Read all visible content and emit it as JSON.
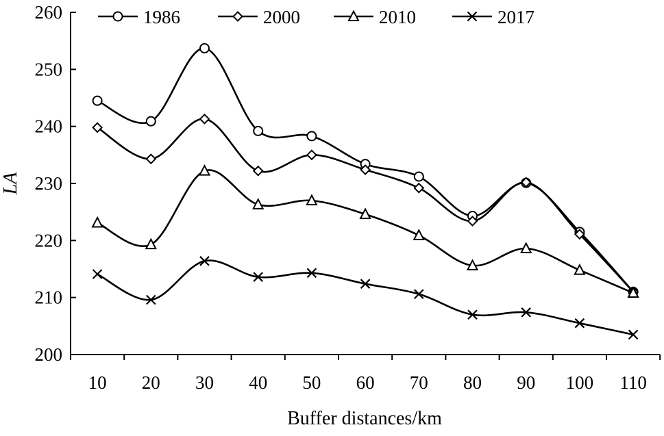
{
  "chart_data": {
    "type": "line",
    "xlabel": "Buffer distances/km",
    "ylabel": "LA",
    "ylim": [
      200,
      260
    ],
    "yticks": [
      200,
      210,
      220,
      230,
      240,
      250,
      260
    ],
    "x": [
      10,
      20,
      30,
      40,
      50,
      60,
      70,
      80,
      90,
      100,
      110
    ],
    "legend_position": "top-left",
    "grid": false,
    "smooth": true,
    "series": [
      {
        "name": "1986",
        "marker": "circle",
        "color": "#000000",
        "values": [
          244.5,
          240.9,
          253.7,
          239.2,
          238.3,
          233.4,
          231.2,
          224.3,
          230.1,
          221.5,
          211.0
        ]
      },
      {
        "name": "2000",
        "marker": "diamond",
        "color": "#000000",
        "values": [
          239.8,
          234.3,
          241.3,
          232.2,
          235.0,
          232.4,
          229.2,
          223.4,
          230.2,
          221.1,
          211.0
        ]
      },
      {
        "name": "2010",
        "marker": "triangle",
        "color": "#000000",
        "values": [
          223.1,
          219.3,
          232.2,
          226.3,
          227.0,
          224.6,
          220.9,
          215.6,
          218.6,
          214.8,
          210.8
        ]
      },
      {
        "name": "2017",
        "marker": "x",
        "color": "#000000",
        "values": [
          214.1,
          209.6,
          216.4,
          213.6,
          214.3,
          212.4,
          210.6,
          207.0,
          207.4,
          205.5,
          203.5
        ]
      }
    ]
  }
}
